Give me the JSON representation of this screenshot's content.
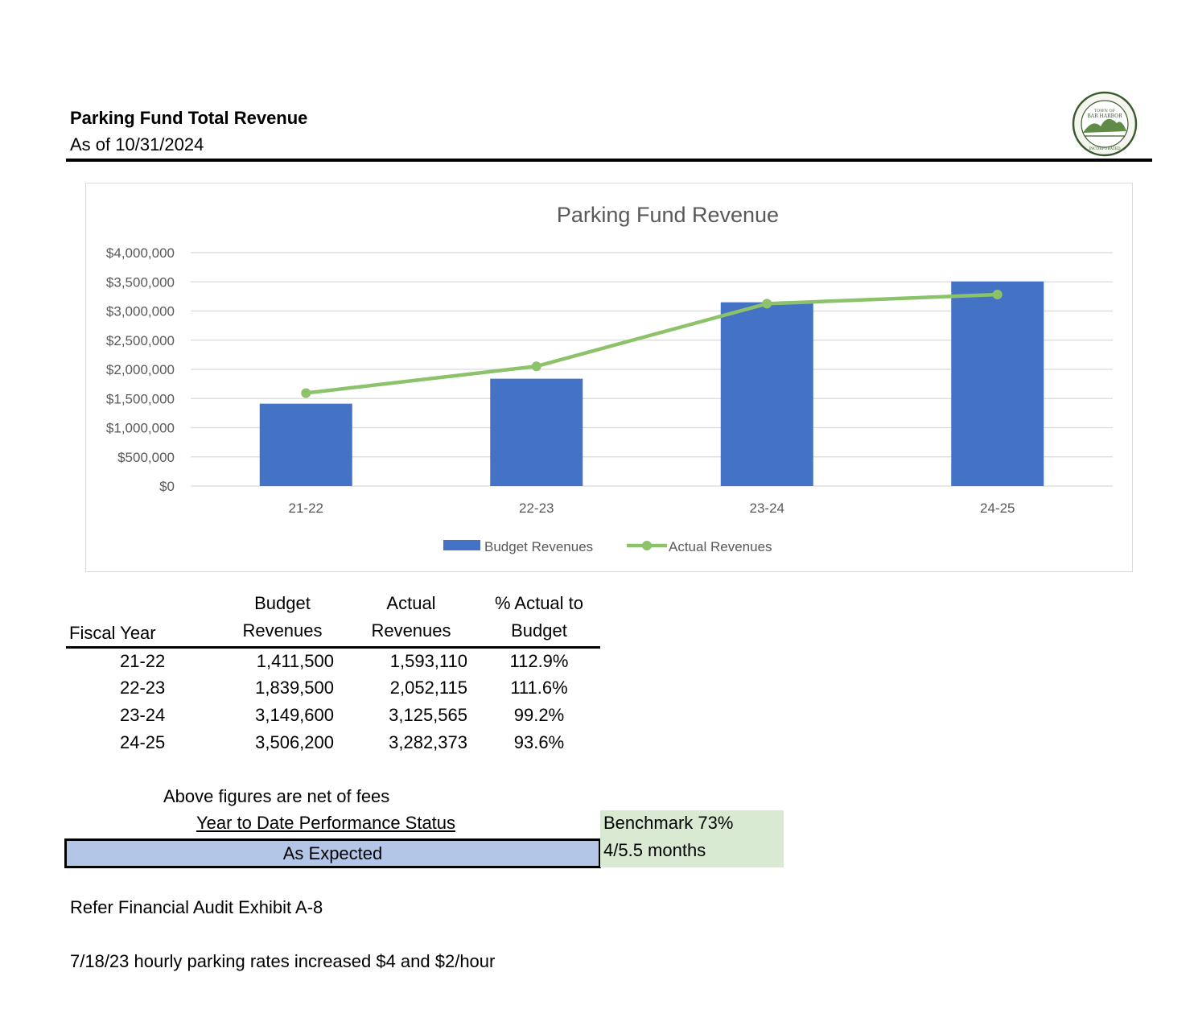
{
  "header": {
    "title": "Parking Fund Total Revenue",
    "subtitle": "As of 10/31/2024"
  },
  "seal": {
    "top_text": "TOWN OF",
    "main_text": "BAR HARBOR",
    "bottom_text": "INCORPORATED",
    "color": "#3a5a2e"
  },
  "chart_data": {
    "type": "bar",
    "title": "Parking Fund Revenue",
    "categories": [
      "21-22",
      "22-23",
      "23-24",
      "24-25"
    ],
    "y_ticks": [
      "$0",
      "$500,000",
      "$1,000,000",
      "$1,500,000",
      "$2,000,000",
      "$2,500,000",
      "$3,000,000",
      "$3,500,000",
      "$4,000,000"
    ],
    "ylim": [
      0,
      4000000
    ],
    "grid": true,
    "legend_position": "bottom",
    "series": [
      {
        "name": "Budget Revenues",
        "kind": "bar",
        "color": "#4472c4",
        "values": [
          1411500,
          1839500,
          3149600,
          3506200
        ]
      },
      {
        "name": "Actual Revenues",
        "kind": "line",
        "color": "#8bc26a",
        "values": [
          1593110,
          2052115,
          3125565,
          3282373
        ]
      }
    ]
  },
  "table": {
    "headers": [
      {
        "line1": "",
        "line2": "Fiscal Year"
      },
      {
        "line1": "Budget",
        "line2": "Revenues"
      },
      {
        "line1": "Actual",
        "line2": "Revenues"
      },
      {
        "line1": "% Actual to",
        "line2": "Budget"
      }
    ],
    "rows": [
      [
        "21-22",
        "1,411,500",
        "1,593,110",
        "112.9%"
      ],
      [
        "22-23",
        "1,839,500",
        "2,052,115",
        "111.6%"
      ],
      [
        "23-24",
        "3,149,600",
        "3,125,565",
        "99.2%"
      ],
      [
        "24-25",
        "3,506,200",
        "3,282,373",
        "93.6%"
      ]
    ]
  },
  "notes": {
    "net_of_fees": "Above figures are net of fees",
    "ytd_label": "Year to Date Performance Status",
    "status": "As Expected",
    "status_color": "#b4c6e7",
    "benchmark_line1": "Benchmark 73%",
    "benchmark_line2": "4/5.5 months",
    "benchmark_color": "#d9ead3",
    "audit": "Refer Financial Audit Exhibit A-8",
    "rates": "7/18/23  hourly parking rates increased $4 and $2/hour"
  }
}
